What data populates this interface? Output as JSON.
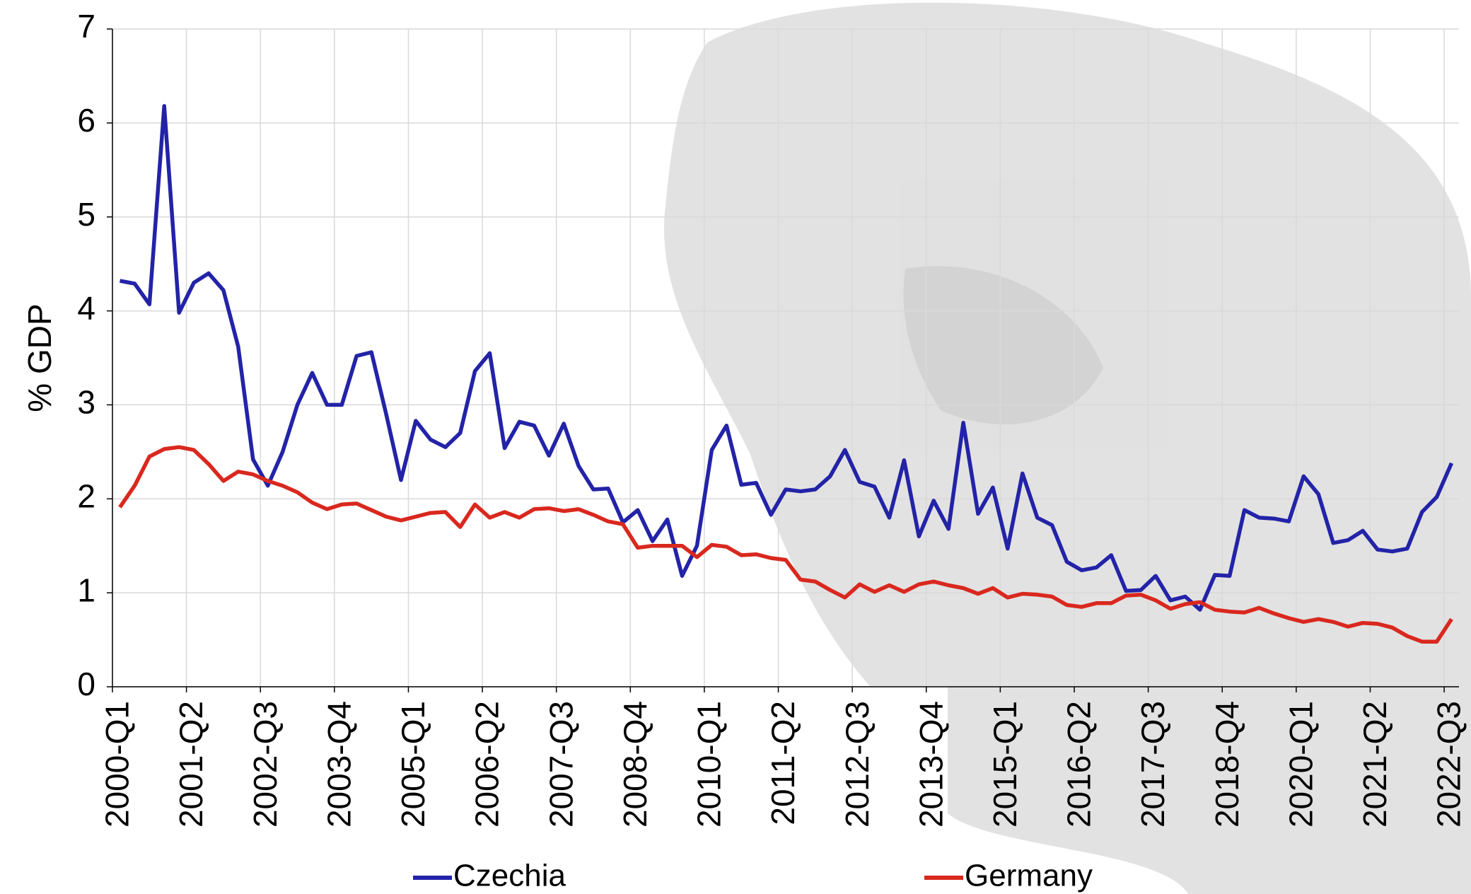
{
  "chart_data": {
    "type": "line",
    "y_label": "% GDP",
    "categories": [
      "2000-Q1",
      null,
      null,
      null,
      null,
      "2001-Q2",
      null,
      null,
      null,
      null,
      "2002-Q3",
      null,
      null,
      null,
      null,
      "2003-Q4",
      null,
      null,
      null,
      null,
      "2005-Q1",
      null,
      null,
      null,
      null,
      "2006-Q2",
      null,
      null,
      null,
      null,
      "2007-Q3",
      null,
      null,
      null,
      null,
      "2008-Q4",
      null,
      null,
      null,
      null,
      "2010-Q1",
      null,
      null,
      null,
      null,
      "2011-Q2",
      null,
      null,
      null,
      null,
      "2012-Q3",
      null,
      null,
      null,
      null,
      "2013-Q4",
      null,
      null,
      null,
      null,
      "2015-Q1",
      null,
      null,
      null,
      null,
      "2016-Q2",
      null,
      null,
      null,
      null,
      "2017-Q3",
      null,
      null,
      null,
      null,
      "2018-Q4",
      null,
      null,
      null,
      null,
      "2020-Q1",
      null,
      null,
      null,
      null,
      "2021-Q2",
      null,
      null,
      null,
      null,
      "2022-Q3"
    ],
    "series": [
      {
        "name": "Czechia",
        "color": "#2323a8",
        "values": [
          4.32,
          4.29,
          4.07,
          6.18,
          3.98,
          4.3,
          4.4,
          4.22,
          3.62,
          2.42,
          2.14,
          2.5,
          3.0,
          3.34,
          3.0,
          3.0,
          3.52,
          3.56,
          2.9,
          2.2,
          2.83,
          2.63,
          2.55,
          2.7,
          3.36,
          3.55,
          2.54,
          2.82,
          2.78,
          2.46,
          2.8,
          2.35,
          2.1,
          2.11,
          1.75,
          1.88,
          1.55,
          1.78,
          1.18,
          1.5,
          2.52,
          2.78,
          2.15,
          2.17,
          1.83,
          2.1,
          2.08,
          2.1,
          2.24,
          2.52,
          2.18,
          2.13,
          1.8,
          2.41,
          1.6,
          1.98,
          1.68,
          2.81,
          1.84,
          2.12,
          1.47,
          2.27,
          1.8,
          1.72,
          1.33,
          1.24,
          1.27,
          1.4,
          1.02,
          1.03,
          1.18,
          0.92,
          0.96,
          0.82,
          1.19,
          1.18,
          1.88,
          1.8,
          1.79,
          1.76,
          2.24,
          2.05,
          1.53,
          1.56,
          1.66,
          1.46,
          1.44,
          1.47,
          1.86,
          2.02,
          2.38
        ]
      },
      {
        "name": "Germany",
        "color": "#d9281e",
        "values": [
          1.91,
          2.14,
          2.45,
          2.53,
          2.55,
          2.52,
          2.37,
          2.19,
          2.29,
          2.26,
          2.19,
          2.14,
          2.07,
          1.96,
          1.89,
          1.94,
          1.95,
          1.88,
          1.81,
          1.77,
          1.81,
          1.85,
          1.86,
          1.7,
          1.94,
          1.8,
          1.86,
          1.8,
          1.89,
          1.9,
          1.87,
          1.89,
          1.83,
          1.76,
          1.73,
          1.48,
          1.5,
          1.5,
          1.5,
          1.38,
          1.51,
          1.49,
          1.4,
          1.41,
          1.37,
          1.35,
          1.14,
          1.12,
          1.03,
          0.95,
          1.09,
          1.01,
          1.08,
          1.01,
          1.09,
          1.12,
          1.08,
          1.05,
          0.99,
          1.05,
          0.95,
          0.99,
          0.98,
          0.96,
          0.87,
          0.85,
          0.89,
          0.89,
          0.97,
          0.98,
          0.92,
          0.83,
          0.88,
          0.9,
          0.82,
          0.8,
          0.79,
          0.84,
          0.78,
          0.73,
          0.69,
          0.72,
          0.69,
          0.64,
          0.68,
          0.67,
          0.63,
          0.54,
          0.48,
          0.48,
          0.72
        ]
      }
    ],
    "ylim": [
      0,
      7
    ],
    "yticks": [
      0,
      1,
      2,
      3,
      4,
      5,
      6,
      7
    ],
    "grid": true,
    "legend": "bottom"
  }
}
